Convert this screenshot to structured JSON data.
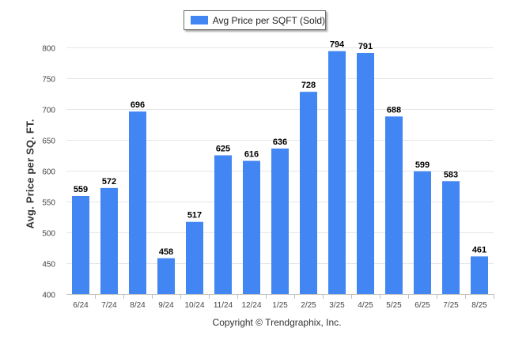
{
  "legend": {
    "label": "Avg Price per SQFT (Sold)"
  },
  "credit": "Copyright © Trendgraphix, Inc.",
  "colors": {
    "bar": "#4286f4",
    "grid": "#e6e6e6",
    "axis": "#c0c0c0",
    "tick_text": "#444444",
    "value_text": "#000000"
  },
  "chart_data": {
    "type": "bar",
    "title": "",
    "xlabel": "",
    "ylabel": "Avg. Price per SQ. FT.",
    "categories": [
      "6/24",
      "7/24",
      "8/24",
      "9/24",
      "10/24",
      "11/24",
      "12/24",
      "1/25",
      "2/25",
      "3/25",
      "4/25",
      "5/25",
      "6/25",
      "7/25",
      "8/25"
    ],
    "series": [
      {
        "name": "Avg Price per SQFT (Sold)",
        "values": [
          559,
          572,
          696,
          458,
          517,
          625,
          616,
          636,
          728,
          794,
          791,
          688,
          599,
          583,
          461
        ]
      }
    ],
    "ylim": [
      400,
      800
    ],
    "yticks": [
      400,
      450,
      500,
      550,
      600,
      650,
      700,
      750,
      800
    ],
    "grid": true,
    "legend_position": "top-center",
    "data_labels": true
  }
}
